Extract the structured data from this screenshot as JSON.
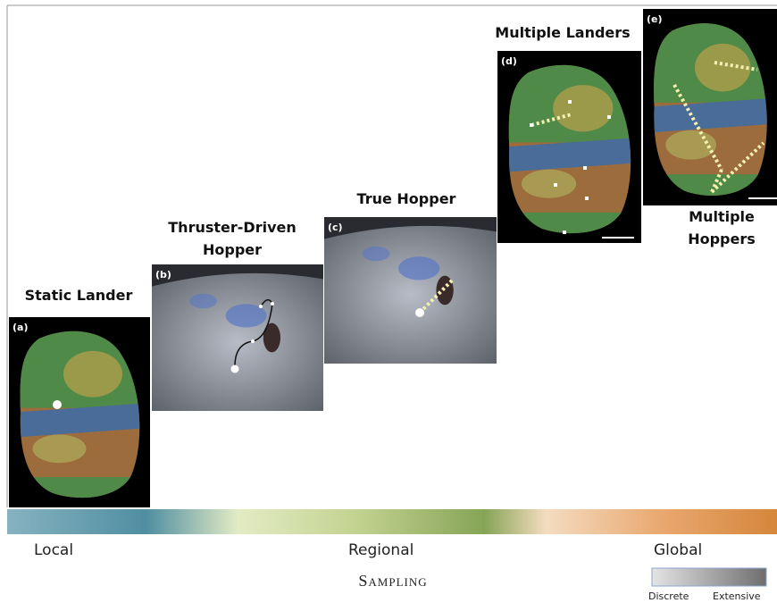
{
  "panels": [
    {
      "label": "(a)",
      "title_lines": [
        "Static Lander"
      ]
    },
    {
      "label": "(b)",
      "title_lines": [
        "Thruster-Driven",
        "Hopper"
      ]
    },
    {
      "label": "(c)",
      "title_lines": [
        "True Hopper"
      ]
    },
    {
      "label": "(d)",
      "title_lines": [
        "Multiple Landers"
      ]
    },
    {
      "label": "(e)",
      "title_lines": [
        "Multiple",
        "Hoppers"
      ]
    }
  ],
  "scale": {
    "labels": [
      "Local",
      "Regional",
      "Global"
    ],
    "axis_title": "Sampling",
    "legend": [
      "Discrete",
      "Extensive"
    ]
  }
}
